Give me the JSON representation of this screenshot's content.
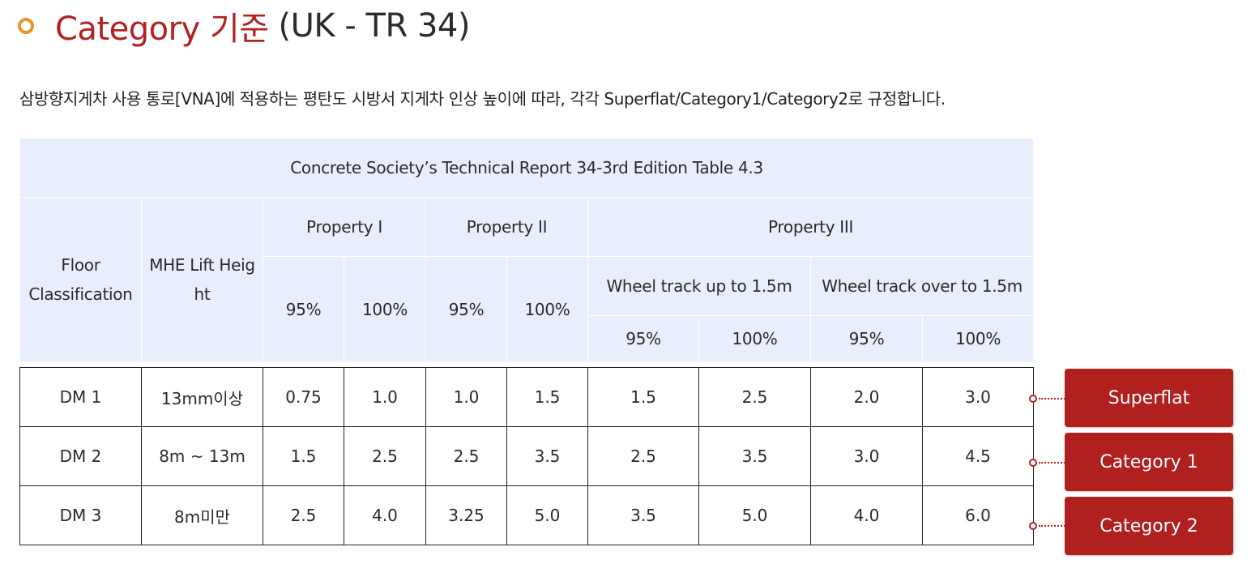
{
  "header": {
    "title_main": "Category 기준",
    "title_sub": "(UK - TR 34)"
  },
  "description": "삼방향지게차 사용 통로[VNA]에 적용하는 평탄도 시방서 지게차 인상 높이에 따라, 각각 Superflat/Category1/Category2로 규정합니다.",
  "table": {
    "caption": "Concrete Society’s Technical Report 34-3rd Edition Table 4.3",
    "col_floor": "Floor Classification",
    "col_lift": "MHE Lift Height",
    "property_1": "Property I",
    "property_2": "Property II",
    "property_3": "Property III",
    "wheel_up": "Wheel track up to 1.5m",
    "wheel_over": "Wheel track over to 1.5m",
    "pct_95": "95%",
    "pct_100": "100%",
    "rows": [
      {
        "cells": [
          "DM 1",
          "13mm이상",
          "0.75",
          "1.0",
          "1.0",
          "1.5",
          "1.5",
          "2.5",
          "2.0",
          "3.0"
        ]
      },
      {
        "cells": [
          "DM 2",
          "8m ~ 13m",
          "1.5",
          "2.5",
          "2.5",
          "3.5",
          "2.5",
          "3.5",
          "3.0",
          "4.5"
        ]
      },
      {
        "cells": [
          "DM 3",
          "8m미만",
          "2.5",
          "4.0",
          "3.25",
          "5.0",
          "3.5",
          "5.0",
          "4.0",
          "6.0"
        ]
      }
    ]
  },
  "badges": [
    "Superflat",
    "Category 1",
    "Category 2"
  ],
  "colors": {
    "accent_red": "#b0201f",
    "title_red": "#b22222",
    "bullet_orange": "#e6952c",
    "header_bg": "#e8eefb"
  }
}
